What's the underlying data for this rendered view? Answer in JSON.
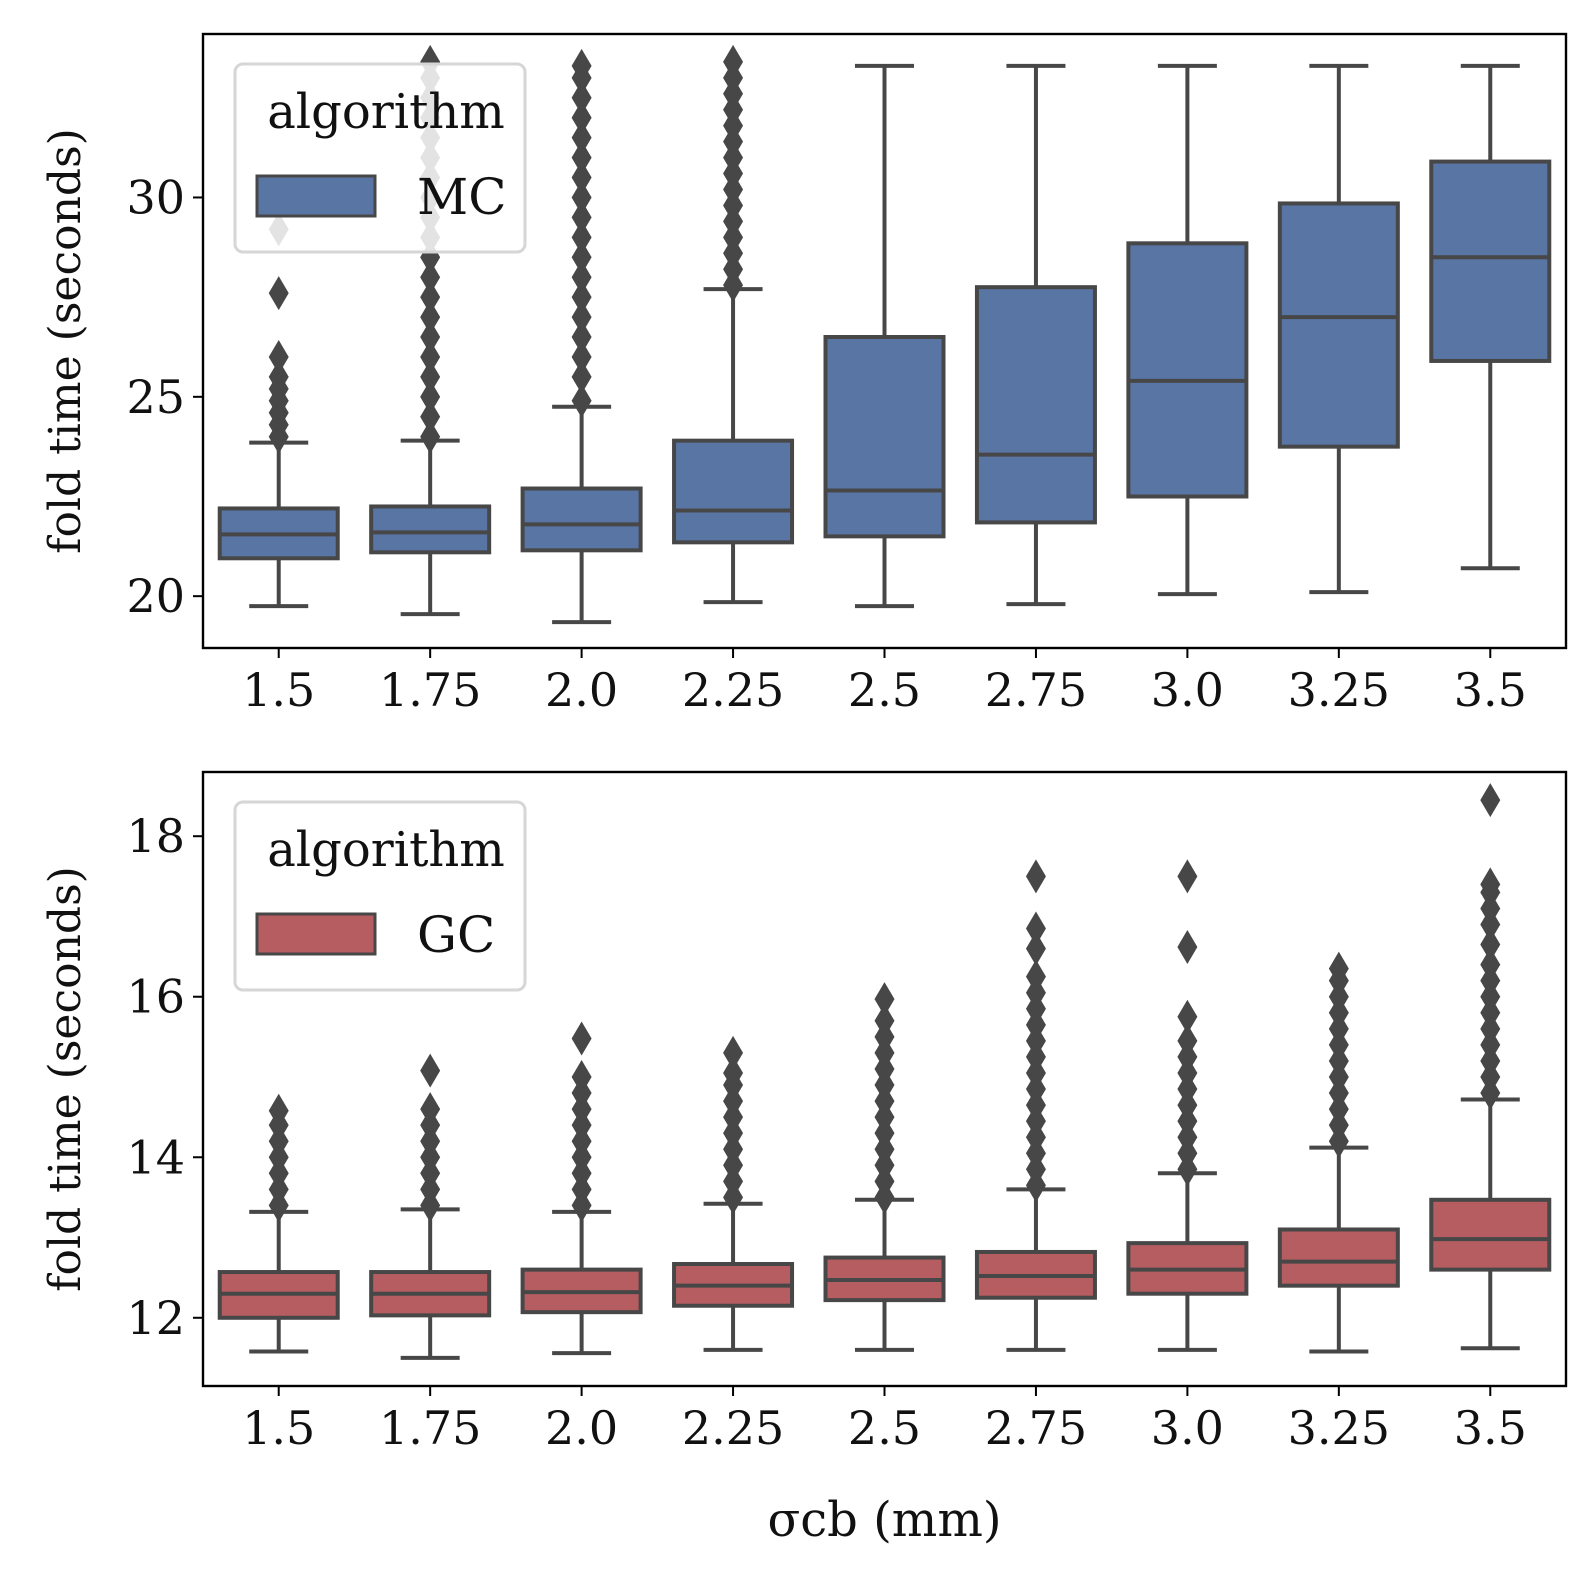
{
  "chart_data": [
    {
      "type": "box",
      "ylabel": "fold time (seconds)",
      "xlabel": "",
      "categories": [
        "1.5",
        "1.75",
        "2.0",
        "2.25",
        "2.5",
        "2.75",
        "3.0",
        "3.25",
        "3.5"
      ],
      "ylim": [
        18.7,
        34.1
      ],
      "yticks": [
        20,
        25,
        30
      ],
      "legend": {
        "title": "algorithm",
        "label": "MC",
        "placement": "top-left"
      },
      "color": "#5875a4",
      "edge_color": "#474747",
      "boxes": [
        {
          "whislo": 19.75,
          "q1": 20.95,
          "med": 21.55,
          "q3": 22.2,
          "whishi": 23.85,
          "fliers": [
            24.0,
            24.3,
            24.6,
            24.9,
            25.2,
            25.5,
            26.0,
            27.6,
            29.2
          ]
        },
        {
          "whislo": 19.55,
          "q1": 21.1,
          "med": 21.6,
          "q3": 22.25,
          "whishi": 23.9,
          "fliers": [
            24.0,
            24.5,
            25.0,
            25.5,
            26.0,
            26.5,
            27.0,
            27.5,
            28.0,
            28.5,
            29.0,
            29.5,
            30.0,
            30.5,
            31.0,
            31.5,
            32.0,
            32.5,
            33.0,
            33.4
          ]
        },
        {
          "whislo": 19.35,
          "q1": 21.15,
          "med": 21.8,
          "q3": 22.7,
          "whishi": 24.75,
          "fliers": [
            24.9,
            25.5,
            26.0,
            26.5,
            27.0,
            27.5,
            28.0,
            28.5,
            29.0,
            29.5,
            30.0,
            30.5,
            31.0,
            31.5,
            32.0,
            32.5,
            33.0,
            33.3
          ]
        },
        {
          "whislo": 19.85,
          "q1": 21.35,
          "med": 22.15,
          "q3": 23.9,
          "whishi": 27.7,
          "fliers": [
            27.8,
            28.2,
            28.6,
            29.0,
            29.4,
            29.8,
            30.2,
            30.6,
            31.0,
            31.4,
            31.8,
            32.2,
            32.6,
            33.0,
            33.4
          ]
        },
        {
          "whislo": 19.75,
          "q1": 21.5,
          "med": 22.65,
          "q3": 26.5,
          "whishi": 33.3,
          "fliers": []
        },
        {
          "whislo": 19.8,
          "q1": 21.85,
          "med": 23.55,
          "q3": 27.75,
          "whishi": 33.3,
          "fliers": []
        },
        {
          "whislo": 20.05,
          "q1": 22.5,
          "med": 25.4,
          "q3": 28.85,
          "whishi": 33.3,
          "fliers": []
        },
        {
          "whislo": 20.1,
          "q1": 23.75,
          "med": 27.0,
          "q3": 29.85,
          "whishi": 33.3,
          "fliers": []
        },
        {
          "whislo": 20.7,
          "q1": 25.9,
          "med": 28.5,
          "q3": 30.9,
          "whishi": 33.3,
          "fliers": []
        }
      ]
    },
    {
      "type": "box",
      "ylabel": "fold time (seconds)",
      "xlabel": "σcb (mm)",
      "categories": [
        "1.5",
        "1.75",
        "2.0",
        "2.25",
        "2.5",
        "2.75",
        "3.0",
        "3.25",
        "3.5"
      ],
      "ylim": [
        11.15,
        18.8
      ],
      "yticks": [
        12,
        14,
        16,
        18
      ],
      "legend": {
        "title": "algorithm",
        "label": "GC",
        "placement": "top-left"
      },
      "color": "#b55d60",
      "edge_color": "#474747",
      "boxes": [
        {
          "whislo": 11.58,
          "q1": 12.0,
          "med": 12.3,
          "q3": 12.57,
          "whishi": 13.32,
          "fliers": [
            13.4,
            13.6,
            13.8,
            14.0,
            14.2,
            14.4,
            14.58
          ]
        },
        {
          "whislo": 11.5,
          "q1": 12.03,
          "med": 12.3,
          "q3": 12.57,
          "whishi": 13.35,
          "fliers": [
            13.4,
            13.6,
            13.8,
            14.0,
            14.2,
            14.4,
            14.6,
            15.08
          ]
        },
        {
          "whislo": 11.56,
          "q1": 12.07,
          "med": 12.32,
          "q3": 12.6,
          "whishi": 13.32,
          "fliers": [
            13.4,
            13.6,
            13.8,
            14.0,
            14.2,
            14.4,
            14.6,
            14.8,
            15.0,
            15.48
          ]
        },
        {
          "whislo": 11.6,
          "q1": 12.15,
          "med": 12.4,
          "q3": 12.67,
          "whishi": 13.42,
          "fliers": [
            13.5,
            13.7,
            13.9,
            14.1,
            14.3,
            14.5,
            14.7,
            14.9,
            15.05,
            15.3
          ]
        },
        {
          "whislo": 11.6,
          "q1": 12.22,
          "med": 12.47,
          "q3": 12.75,
          "whishi": 13.47,
          "fliers": [
            13.5,
            13.7,
            13.9,
            14.1,
            14.3,
            14.5,
            14.7,
            14.9,
            15.1,
            15.3,
            15.5,
            15.7,
            15.97
          ]
        },
        {
          "whislo": 11.6,
          "q1": 12.25,
          "med": 12.52,
          "q3": 12.82,
          "whishi": 13.6,
          "fliers": [
            13.65,
            13.85,
            14.05,
            14.25,
            14.45,
            14.65,
            14.85,
            15.05,
            15.25,
            15.45,
            15.65,
            15.85,
            16.05,
            16.25,
            16.6,
            16.85,
            17.5
          ]
        },
        {
          "whislo": 11.6,
          "q1": 12.3,
          "med": 12.6,
          "q3": 12.93,
          "whishi": 13.8,
          "fliers": [
            13.85,
            14.05,
            14.25,
            14.45,
            14.65,
            14.85,
            15.05,
            15.25,
            15.45,
            15.75,
            16.62,
            17.5
          ]
        },
        {
          "whislo": 11.58,
          "q1": 12.4,
          "med": 12.7,
          "q3": 13.1,
          "whishi": 14.12,
          "fliers": [
            14.2,
            14.4,
            14.6,
            14.8,
            15.0,
            15.2,
            15.4,
            15.6,
            15.8,
            16.0,
            16.2,
            16.35
          ]
        },
        {
          "whislo": 11.62,
          "q1": 12.6,
          "med": 12.98,
          "q3": 13.47,
          "whishi": 14.72,
          "fliers": [
            14.8,
            15.0,
            15.2,
            15.4,
            15.6,
            15.8,
            16.0,
            16.2,
            16.4,
            16.65,
            16.9,
            17.1,
            17.3,
            17.4,
            18.45
          ]
        }
      ]
    }
  ]
}
